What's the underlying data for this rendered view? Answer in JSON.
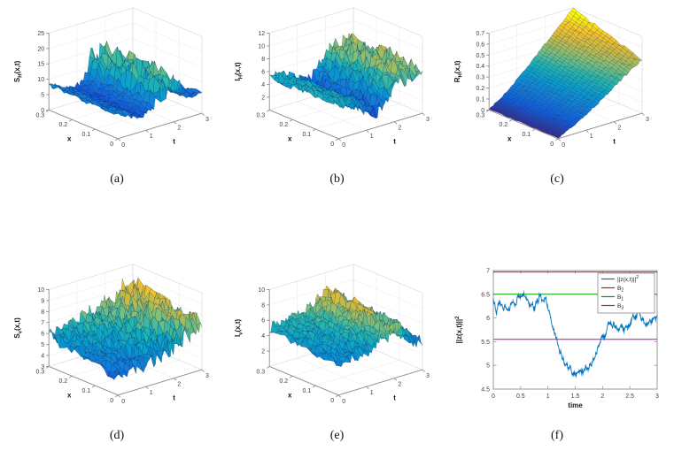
{
  "page": {
    "background": "#ffffff"
  },
  "figure": {
    "subplots": [
      {
        "id": "a",
        "caption": "(a)"
      },
      {
        "id": "b",
        "caption": "(b)"
      },
      {
        "id": "c",
        "caption": "(c)"
      },
      {
        "id": "d",
        "caption": "(d)"
      },
      {
        "id": "e",
        "caption": "(e)"
      },
      {
        "id": "f",
        "caption": "(f)"
      }
    ]
  },
  "chart_data": [
    {
      "type": "surface3d",
      "subplot": "(a)",
      "zlabel": {
        "main": "S",
        "sub": "H",
        "rest": "(x,t)"
      },
      "xlabel": "x",
      "tlabel": "t",
      "xlim": [
        0,
        0.3
      ],
      "xticks": [
        0,
        0.1,
        0.2,
        0.3
      ],
      "tlim": [
        0,
        3
      ],
      "tticks": [
        0,
        1,
        2,
        3
      ],
      "zlim": [
        0,
        25
      ],
      "zticks": [
        0,
        5,
        10,
        15,
        20,
        25
      ],
      "colormap": "parula",
      "grid": true,
      "description": "Stochastic rough surface; baseline z about 5-8, dip to about 4 near t=0.9, tall spikes up to about 20 for t between 1.4 and 2.2, settling near 6 at t=3",
      "seed": 11,
      "nt": 56,
      "nx": 13,
      "profile_t": [
        0,
        0.3,
        0.6,
        0.9,
        1.1,
        1.3,
        1.5,
        1.7,
        1.9,
        2.1,
        2.3,
        2.5,
        2.8,
        3
      ],
      "profile_z": [
        8,
        7,
        5.5,
        4.5,
        5.5,
        8,
        14,
        10,
        15,
        12,
        9,
        7,
        6,
        6.5
      ],
      "amp_t": [
        0,
        0.8,
        1.2,
        1.5,
        1.8,
        2.1,
        2.4,
        3
      ],
      "amp_z": [
        1.2,
        1.0,
        1.6,
        3.5,
        4.2,
        3.2,
        1.6,
        1.2
      ],
      "crange": [
        2,
        24
      ]
    },
    {
      "type": "surface3d",
      "subplot": "(b)",
      "zlabel": {
        "main": "I",
        "sub": "H",
        "rest": "(x,t)"
      },
      "xlabel": "x",
      "tlabel": "t",
      "xlim": [
        0,
        0.3
      ],
      "xticks": [
        0,
        0.1,
        0.2,
        0.3
      ],
      "tlim": [
        0,
        3
      ],
      "tticks": [
        0,
        1,
        2,
        3
      ],
      "zlim": [
        0,
        12
      ],
      "zticks": [
        2,
        4,
        6,
        8,
        10,
        12
      ],
      "colormap": "parula",
      "grid": true,
      "description": "Stochastic rough surface; starts near 5.5, dips to about 1-3 near t=1.4, rises with peaks near 10 around t=2.3-2.8",
      "seed": 22,
      "nt": 56,
      "nx": 13,
      "profile_t": [
        0,
        0.4,
        0.8,
        1.1,
        1.4,
        1.7,
        2.0,
        2.3,
        2.5,
        2.8,
        3
      ],
      "profile_z": [
        5.5,
        5,
        4,
        3,
        2.5,
        4,
        5.5,
        7,
        6,
        7.5,
        5.5
      ],
      "amp_t": [
        0,
        1,
        1.5,
        2,
        2.5,
        3
      ],
      "amp_z": [
        0.9,
        1.1,
        1.3,
        1.6,
        2.0,
        1.4
      ],
      "crange": [
        1,
        10.5
      ]
    },
    {
      "type": "surface3d",
      "subplot": "(c)",
      "zlabel": {
        "main": "R",
        "sub": "H",
        "rest": "(x,t)"
      },
      "xlabel": "x",
      "tlabel": "t",
      "xlim": [
        0,
        0.3
      ],
      "xticks": [
        0,
        0.1,
        0.2,
        0.3
      ],
      "tlim": [
        0,
        3
      ],
      "tticks": [
        0,
        1,
        2,
        3
      ],
      "zlim": [
        0,
        0.7
      ],
      "zticks": [
        0,
        0.1,
        0.2,
        0.3,
        0.4,
        0.5,
        0.6,
        0.7
      ],
      "colormap": "parula",
      "grid": true,
      "description": "Smooth monotonically increasing surface from 0 at t=0 to about 0.5-0.68 at t=3, higher for larger x",
      "seed": 33,
      "nt": 44,
      "nx": 16,
      "profile_t": [
        0,
        0.5,
        1,
        1.5,
        2,
        2.5,
        3
      ],
      "profile_z": [
        0.005,
        0.08,
        0.17,
        0.27,
        0.38,
        0.49,
        0.59
      ],
      "amp_t": [
        0,
        3
      ],
      "amp_z": [
        0.006,
        0.012
      ],
      "xmul": 0.35,
      "crange": [
        0,
        0.66
      ]
    },
    {
      "type": "surface3d",
      "subplot": "(d)",
      "zlabel": {
        "main": "S",
        "sub": "v",
        "rest": "(x,t)"
      },
      "xlabel": "x",
      "tlabel": "t",
      "xlim": [
        0,
        0.3
      ],
      "xticks": [
        0,
        0.1,
        0.2,
        0.3
      ],
      "tlim": [
        0,
        3
      ],
      "tticks": [
        0,
        1,
        2,
        3
      ],
      "zlim": [
        3,
        10
      ],
      "zticks": [
        3,
        4,
        5,
        6,
        7,
        8,
        9,
        10
      ],
      "colormap": "parula",
      "grid": true,
      "description": "Stochastic rough surface rising from about 4.5 toward peaks near 9 at large t and large x",
      "seed": 44,
      "nt": 56,
      "nx": 13,
      "profile_t": [
        0,
        0.5,
        1,
        1.5,
        2,
        2.4,
        2.7,
        3
      ],
      "profile_z": [
        4.6,
        4.9,
        5.1,
        5.5,
        6.0,
        6.4,
        6.9,
        7.1
      ],
      "amp_t": [
        0,
        1,
        2,
        2.6,
        3
      ],
      "amp_z": [
        0.55,
        0.75,
        0.95,
        1.1,
        1.0
      ],
      "xadd": 1.2,
      "crange": [
        3.6,
        9.2
      ]
    },
    {
      "type": "surface3d",
      "subplot": "(e)",
      "zlabel": {
        "main": "I",
        "sub": "v",
        "rest": "(x,t)"
      },
      "xlabel": "x",
      "tlabel": "t",
      "xlim": [
        0,
        0.3
      ],
      "xticks": [
        0,
        0.1,
        0.2,
        0.3
      ],
      "tlim": [
        0,
        3
      ],
      "tticks": [
        0,
        1,
        2,
        3
      ],
      "zlim": [
        0,
        10
      ],
      "zticks": [
        2,
        4,
        6,
        8,
        10
      ],
      "colormap": "parula",
      "grid": true,
      "description": "Stochastic rough surface; baseline near 4, peaks up to about 9 around t=2-2.5 at large x, decreasing near t=3",
      "seed": 55,
      "nt": 56,
      "nx": 13,
      "profile_t": [
        0,
        0.5,
        1,
        1.4,
        1.8,
        2.1,
        2.4,
        2.7,
        3
      ],
      "profile_z": [
        4,
        4.2,
        4.5,
        5,
        6,
        6.3,
        5.5,
        4.3,
        3.6
      ],
      "amp_t": [
        0,
        1.5,
        2,
        2.5,
        3
      ],
      "amp_z": [
        0.7,
        0.9,
        1.4,
        1.2,
        0.8
      ],
      "xadd": 1.0,
      "crange": [
        1.8,
        9.0
      ]
    },
    {
      "type": "line",
      "subplot": "(f)",
      "xlabel": "time",
      "ylabel": {
        "main": "||z(x,t)||",
        "sup": "2"
      },
      "xlim": [
        0,
        3
      ],
      "xticks": [
        0,
        0.5,
        1,
        1.5,
        2,
        2.5,
        3
      ],
      "ylim": [
        4.5,
        7
      ],
      "yticks": [
        4.5,
        5,
        5.5,
        6,
        6.5,
        7
      ],
      "series_color": "#0072BD",
      "seed": 66,
      "noise": 0.05,
      "keypoints_t": [
        0,
        0.05,
        0.15,
        0.25,
        0.35,
        0.45,
        0.55,
        0.65,
        0.75,
        0.85,
        0.95,
        1.05,
        1.15,
        1.25,
        1.35,
        1.45,
        1.55,
        1.65,
        1.75,
        1.85,
        1.95,
        2.05,
        2.15,
        2.25,
        2.35,
        2.45,
        2.55,
        2.65,
        2.75,
        2.85,
        2.95,
        3
      ],
      "keypoints_y": [
        6.45,
        6.2,
        6.35,
        6.15,
        6.3,
        6.45,
        6.6,
        6.35,
        6.2,
        6.45,
        6.4,
        6.05,
        5.6,
        5.2,
        4.95,
        4.85,
        4.9,
        4.85,
        5.0,
        5.2,
        5.5,
        5.65,
        6.0,
        5.85,
        5.7,
        5.8,
        5.95,
        6.1,
        5.9,
        5.8,
        6.0,
        6.05
      ],
      "bounds": [
        {
          "label": {
            "main": "B",
            "sub": "2"
          },
          "color": "#ff0000",
          "value": 6.97
        },
        {
          "label": {
            "main": "B",
            "sub": "1"
          },
          "color": "#00a000",
          "value": 6.5
        },
        {
          "label": {
            "main": "B",
            "sub": "3"
          },
          "color": "#cc00cc",
          "value": 5.55
        }
      ],
      "legend": [
        {
          "label": {
            "main": "||z(x,t)||",
            "sup": "2"
          },
          "color": "#0072BD"
        },
        {
          "label": {
            "main": "B",
            "sub": "2"
          },
          "color": "#ff0000"
        },
        {
          "label": {
            "main": "B",
            "sub": "1"
          },
          "color": "#00a000"
        },
        {
          "label": {
            "main": "B",
            "sub": "3"
          },
          "color": "#cc00cc"
        }
      ],
      "legend_position": "top-right"
    }
  ]
}
